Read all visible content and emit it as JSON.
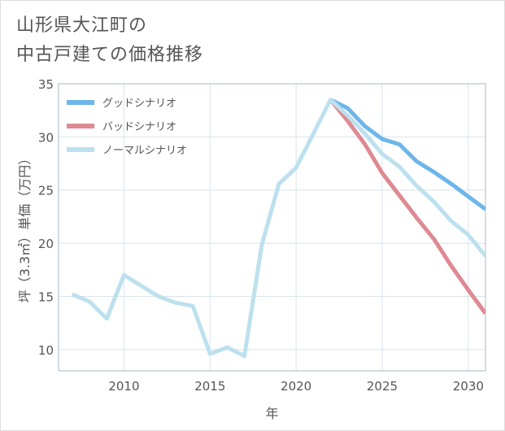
{
  "title_lines": [
    "山形県大江町の",
    "中古戸建ての価格推移"
  ],
  "chart_data": {
    "type": "line",
    "title": "山形県大江町の中古戸建ての価格推移",
    "xlabel": "年",
    "ylabel": "坪（3.3㎡）単価（万円）",
    "xlim": [
      2006.2,
      2031
    ],
    "ylim": [
      8,
      35
    ],
    "xticks": [
      2010,
      2015,
      2020,
      2025,
      2030
    ],
    "yticks": [
      10,
      15,
      20,
      25,
      30,
      35
    ],
    "grid": true,
    "legend_position": "top-left",
    "series": [
      {
        "name": "グッドシナリオ",
        "color": "#6cb6ea",
        "x": [
          2022,
          2023,
          2024,
          2025,
          2026,
          2027,
          2028,
          2029,
          2030,
          2031
        ],
        "y": [
          33.5,
          32.7,
          31.0,
          29.8,
          29.3,
          27.7,
          26.7,
          25.6,
          24.4,
          23.2
        ]
      },
      {
        "name": "バッドシナリオ",
        "color": "#de8a93",
        "x": [
          2022,
          2023,
          2024,
          2025,
          2026,
          2027,
          2028,
          2029,
          2030,
          2031
        ],
        "y": [
          33.5,
          31.5,
          29.3,
          26.6,
          24.5,
          22.4,
          20.4,
          17.9,
          15.6,
          13.4
        ]
      },
      {
        "name": "ノーマルシナリオ",
        "color": "#bde0ee",
        "x": [
          2007,
          2008,
          2009,
          2010,
          2011,
          2012,
          2013,
          2014,
          2015,
          2016,
          2017,
          2018,
          2019,
          2020,
          2021,
          2022,
          2023,
          2024,
          2025,
          2026,
          2027,
          2028,
          2029,
          2030,
          2031
        ],
        "y": [
          15.2,
          14.5,
          12.9,
          17.0,
          16.0,
          15.0,
          14.4,
          14.1,
          9.6,
          10.2,
          9.4,
          19.8,
          25.6,
          27.1,
          30.3,
          33.5,
          32.0,
          30.3,
          28.4,
          27.2,
          25.4,
          23.9,
          22.1,
          20.8,
          18.8
        ]
      }
    ]
  }
}
